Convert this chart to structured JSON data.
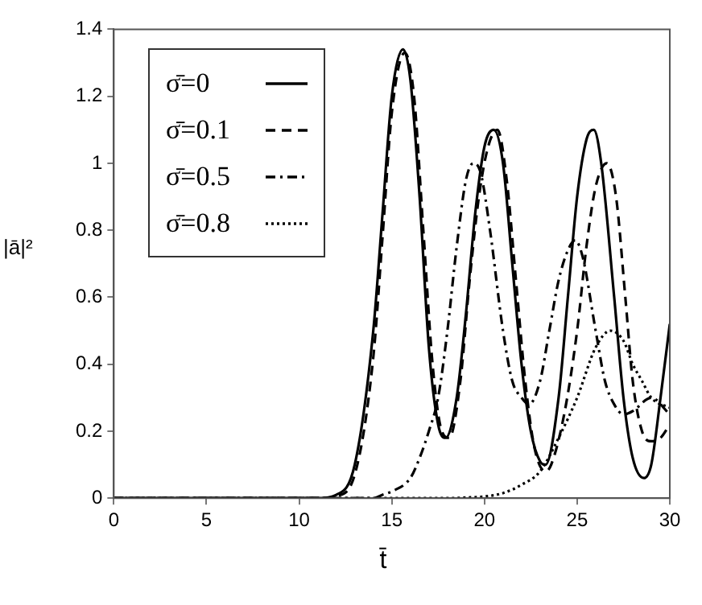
{
  "chart_data": {
    "type": "line",
    "xlabel": "t̄",
    "ylabel": "|ā|²",
    "xlim": [
      0,
      30
    ],
    "ylim": [
      0,
      1.4
    ],
    "xticks": [
      0,
      5,
      10,
      15,
      20,
      25,
      30
    ],
    "yticks": [
      0,
      0.2,
      0.4,
      0.6,
      0.8,
      1,
      1.2,
      1.4
    ],
    "grid": false,
    "legend": "top left",
    "marker": "none",
    "series": [
      {
        "name": "σ̄=0",
        "color": "#000000",
        "line_style": "solid",
        "x": [
          0,
          11,
          12,
          13,
          14,
          14.5,
          15,
          15.6,
          16,
          16.5,
          17,
          17.5,
          17.9,
          18.5,
          19,
          19.5,
          20,
          20.5,
          21,
          21.5,
          22,
          22.5,
          23,
          23.3,
          24,
          24.5,
          25,
          25.5,
          25.9,
          26.3,
          27,
          27.5,
          28,
          28.6,
          29,
          29.5,
          30
        ],
        "values": [
          0,
          0,
          0.01,
          0.1,
          0.5,
          0.85,
          1.2,
          1.34,
          1.25,
          0.9,
          0.45,
          0.22,
          0.18,
          0.3,
          0.55,
          0.85,
          1.05,
          1.1,
          1,
          0.7,
          0.4,
          0.2,
          0.11,
          0.1,
          0.3,
          0.6,
          0.9,
          1.07,
          1.1,
          1,
          0.6,
          0.3,
          0.12,
          0.06,
          0.1,
          0.3,
          0.52
        ]
      },
      {
        "name": "σ̄=0.1",
        "color": "#000000",
        "line_style": "dashed",
        "x": [
          0,
          11.5,
          12,
          13,
          14,
          14.5,
          15,
          15.7,
          16.2,
          16.7,
          17.2,
          17.7,
          18.1,
          18.7,
          19.2,
          19.7,
          20.2,
          20.7,
          21.2,
          21.7,
          22.2,
          22.7,
          23.3,
          23.6,
          24.3,
          25,
          25.5,
          26,
          26.6,
          27.1,
          27.6,
          28,
          28.5,
          29,
          29.5,
          30
        ],
        "values": [
          0,
          0,
          0.005,
          0.07,
          0.42,
          0.78,
          1.15,
          1.33,
          1.2,
          0.8,
          0.4,
          0.2,
          0.18,
          0.35,
          0.65,
          0.9,
          1.05,
          1.1,
          0.95,
          0.65,
          0.35,
          0.15,
          0.08,
          0.1,
          0.25,
          0.5,
          0.75,
          0.93,
          1,
          0.9,
          0.6,
          0.35,
          0.2,
          0.17,
          0.18,
          0.22
        ]
      },
      {
        "name": "σ̄=0.5",
        "color": "#000000",
        "line_style": "dashdot",
        "x": [
          0,
          14,
          14.5,
          15,
          16,
          16.5,
          17,
          17.5,
          18,
          18.5,
          19,
          19.4,
          19.8,
          20.3,
          21,
          21.5,
          22,
          22.4,
          23,
          23.5,
          24,
          24.5,
          24.9,
          25.3,
          26,
          26.5,
          27,
          27.5,
          28,
          29,
          30
        ],
        "values": [
          0,
          0,
          0.01,
          0.02,
          0.06,
          0.12,
          0.2,
          0.3,
          0.5,
          0.75,
          0.95,
          1,
          0.97,
          0.8,
          0.5,
          0.35,
          0.3,
          0.28,
          0.35,
          0.5,
          0.65,
          0.74,
          0.77,
          0.72,
          0.5,
          0.35,
          0.28,
          0.25,
          0.26,
          0.3,
          0.25
        ]
      },
      {
        "name": "σ̄=0.8",
        "color": "#000000",
        "line_style": "dotted",
        "x": [
          0,
          18,
          19,
          20,
          21,
          22,
          23,
          24,
          25,
          26,
          26.8,
          27.5,
          28,
          28.5,
          29,
          30
        ],
        "values": [
          0,
          0,
          0.002,
          0.005,
          0.015,
          0.04,
          0.08,
          0.18,
          0.3,
          0.45,
          0.5,
          0.47,
          0.4,
          0.35,
          0.3,
          0.27
        ]
      }
    ]
  }
}
